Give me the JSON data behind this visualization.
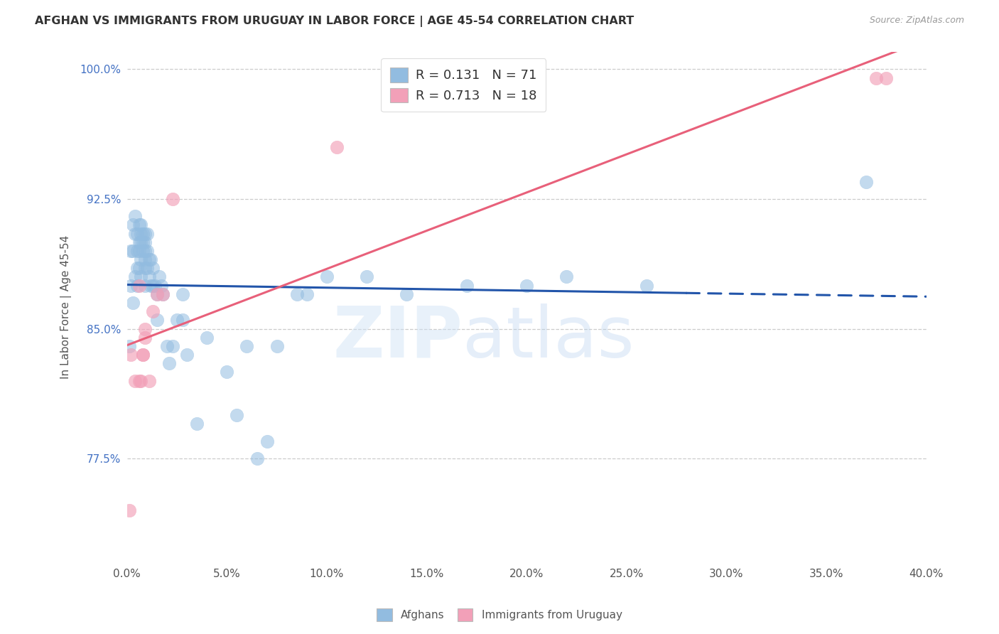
{
  "title": "AFGHAN VS IMMIGRANTS FROM URUGUAY IN LABOR FORCE | AGE 45-54 CORRELATION CHART",
  "source": "Source: ZipAtlas.com",
  "ylabel": "In Labor Force | Age 45-54",
  "xlim": [
    0.0,
    0.4
  ],
  "ylim": [
    0.715,
    1.01
  ],
  "xtick_labels": [
    "0.0%",
    "5.0%",
    "10.0%",
    "15.0%",
    "20.0%",
    "25.0%",
    "30.0%",
    "35.0%",
    "40.0%"
  ],
  "xtick_vals": [
    0.0,
    0.05,
    0.1,
    0.15,
    0.2,
    0.25,
    0.3,
    0.35,
    0.4
  ],
  "ytick_labels": [
    "77.5%",
    "85.0%",
    "92.5%",
    "100.0%"
  ],
  "ytick_vals": [
    0.775,
    0.85,
    0.925,
    1.0
  ],
  "legend_R1": "0.131",
  "legend_N1": "71",
  "legend_R2": "0.713",
  "legend_N2": "18",
  "blue_color": "#92bce0",
  "pink_color": "#f2a0b8",
  "trend_blue_color": "#2255aa",
  "trend_pink_color": "#e8607a",
  "afghans_x": [
    0.001,
    0.002,
    0.002,
    0.003,
    0.003,
    0.003,
    0.004,
    0.004,
    0.004,
    0.005,
    0.005,
    0.005,
    0.005,
    0.006,
    0.006,
    0.006,
    0.006,
    0.007,
    0.007,
    0.007,
    0.007,
    0.007,
    0.008,
    0.008,
    0.008,
    0.009,
    0.009,
    0.009,
    0.009,
    0.009,
    0.009,
    0.01,
    0.01,
    0.01,
    0.011,
    0.011,
    0.012,
    0.012,
    0.013,
    0.013,
    0.014,
    0.015,
    0.015,
    0.016,
    0.017,
    0.018,
    0.02,
    0.021,
    0.023,
    0.025,
    0.028,
    0.028,
    0.03,
    0.035,
    0.04,
    0.05,
    0.055,
    0.06,
    0.065,
    0.07,
    0.075,
    0.085,
    0.09,
    0.1,
    0.12,
    0.14,
    0.17,
    0.2,
    0.22,
    0.26,
    0.37
  ],
  "afghans_y": [
    0.84,
    0.895,
    0.875,
    0.91,
    0.895,
    0.865,
    0.915,
    0.905,
    0.88,
    0.905,
    0.895,
    0.885,
    0.875,
    0.91,
    0.9,
    0.895,
    0.885,
    0.91,
    0.905,
    0.9,
    0.89,
    0.88,
    0.905,
    0.9,
    0.895,
    0.905,
    0.9,
    0.895,
    0.89,
    0.885,
    0.875,
    0.905,
    0.895,
    0.885,
    0.89,
    0.88,
    0.89,
    0.875,
    0.885,
    0.875,
    0.875,
    0.87,
    0.855,
    0.88,
    0.875,
    0.87,
    0.84,
    0.83,
    0.84,
    0.855,
    0.87,
    0.855,
    0.835,
    0.795,
    0.845,
    0.825,
    0.8,
    0.84,
    0.775,
    0.785,
    0.84,
    0.87,
    0.87,
    0.88,
    0.88,
    0.87,
    0.875,
    0.875,
    0.88,
    0.875,
    0.935
  ],
  "uruguay_x": [
    0.001,
    0.002,
    0.004,
    0.006,
    0.006,
    0.007,
    0.008,
    0.008,
    0.009,
    0.009,
    0.011,
    0.013,
    0.015,
    0.018,
    0.023,
    0.105,
    0.375,
    0.38
  ],
  "uruguay_y": [
    0.745,
    0.835,
    0.82,
    0.82,
    0.875,
    0.82,
    0.835,
    0.835,
    0.85,
    0.845,
    0.82,
    0.86,
    0.87,
    0.87,
    0.925,
    0.955,
    0.995,
    0.995
  ],
  "blue_trend_x_start": 0.0,
  "blue_trend_x_solid_end": 0.28,
  "blue_trend_x_end": 0.4,
  "pink_trend_x_start": 0.0,
  "pink_trend_x_end": 0.4
}
